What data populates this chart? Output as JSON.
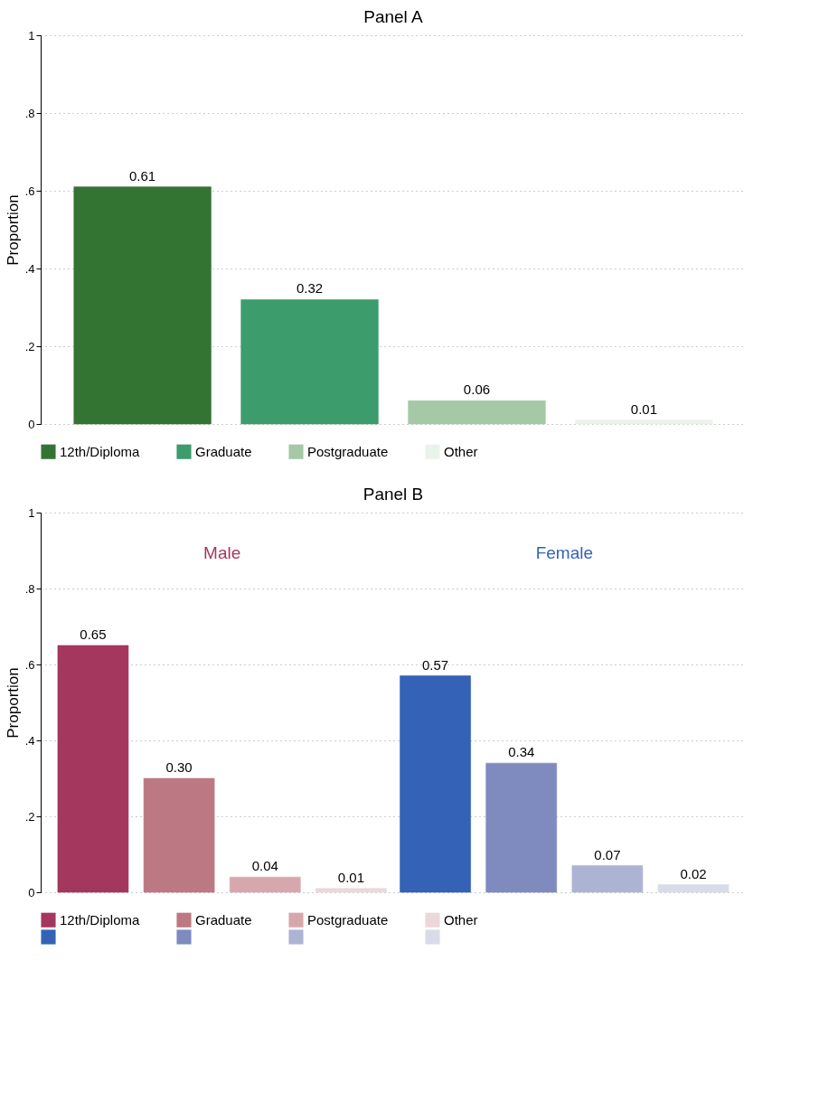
{
  "chart_data": [
    {
      "type": "bar",
      "title": "Panel A",
      "ylabel": "Proportion",
      "categories": [
        null
      ],
      "series": [
        {
          "name": "12th/Diploma",
          "colors": [
            "#347433"
          ],
          "values": [
            0.61
          ],
          "value_labels": [
            "0.61"
          ]
        },
        {
          "name": "Graduate",
          "colors": [
            "#3c9c6c"
          ],
          "values": [
            0.32
          ],
          "value_labels": [
            "0.32"
          ]
        },
        {
          "name": "Postgraduate",
          "colors": [
            "#a5c8a6"
          ],
          "values": [
            0.06
          ],
          "value_labels": [
            "0.06"
          ]
        },
        {
          "name": "Other",
          "colors": [
            "#eaf3ea"
          ],
          "values": [
            0.01
          ],
          "value_labels": [
            "0.01"
          ]
        }
      ],
      "ylim": [
        0,
        1
      ],
      "yticks": [
        0,
        {
          "value": 0.2,
          "label": ".2"
        },
        {
          "value": 0.4,
          "label": ".4"
        },
        {
          "value": 0.6,
          "label": ".6"
        },
        {
          "value": 0.8,
          "label": ".8"
        },
        1
      ],
      "grid": "y",
      "legend": "bottom",
      "tick_labels": "y"
    },
    {
      "type": "bar",
      "title": "Panel B",
      "ylabel": "Proportion",
      "categories": [
        "Male",
        "Female"
      ],
      "series": [
        {
          "name": "12th/Diploma",
          "colors": [
            "#a4375e",
            "#3462b6"
          ],
          "values": [
            0.65,
            0.57
          ],
          "value_labels": [
            "0.65",
            "0.57"
          ]
        },
        {
          "name": "Graduate",
          "colors": [
            "#bc7883",
            "#7f8bbf"
          ],
          "values": [
            0.3,
            0.34
          ],
          "value_labels": [
            "0.30",
            "0.34"
          ]
        },
        {
          "name": "Postgraduate",
          "colors": [
            "#d6a8ae",
            "#adb4d3"
          ],
          "values": [
            0.04,
            0.07
          ],
          "value_labels": [
            "0.04",
            "0.07"
          ]
        },
        {
          "name": "Other",
          "colors": [
            "#ecd8da",
            "#d8dce9"
          ],
          "values": [
            0.01,
            0.02
          ],
          "value_labels": [
            "0.01",
            "0.02"
          ]
        }
      ],
      "ylim": [
        0,
        1
      ],
      "yticks": [
        0,
        {
          "value": 0.2,
          "label": ".2"
        },
        {
          "value": 0.4,
          "label": ".4"
        },
        {
          "value": 0.6,
          "label": ".6"
        },
        {
          "value": 0.8,
          "label": ".8"
        },
        1
      ],
      "grid": "y",
      "legend": "bottom",
      "tick_labels": "y"
    }
  ]
}
